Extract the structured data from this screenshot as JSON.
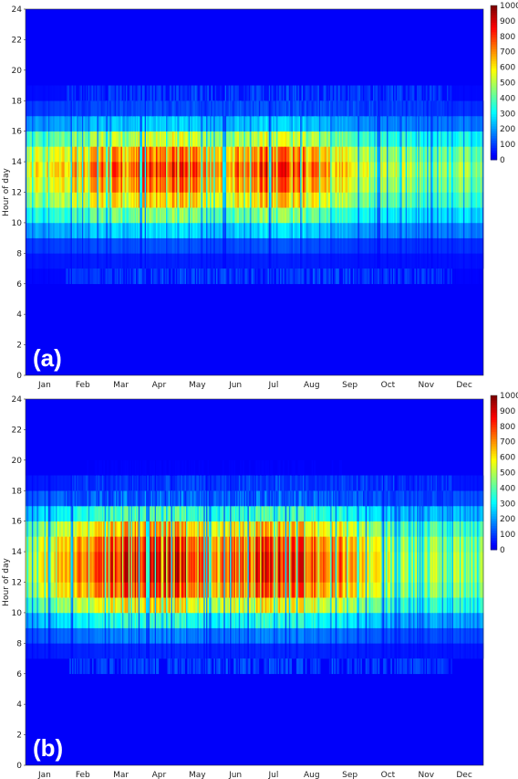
{
  "chart_data": [
    {
      "type": "heatmap",
      "panel_label": "(a)",
      "ylabel": "Hour of day",
      "ylim": [
        0,
        24
      ],
      "yticks": [
        "0",
        "2",
        "4",
        "6",
        "8",
        "10",
        "12",
        "14",
        "16",
        "18",
        "20",
        "22",
        "24"
      ],
      "xticks": [
        "Jan",
        "Feb",
        "Mar",
        "Apr",
        "May",
        "Jun",
        "Jul",
        "Aug",
        "Sep",
        "Oct",
        "Nov",
        "Dec"
      ],
      "colorbar": {
        "range": [
          0,
          1000
        ],
        "ticks": [
          "0",
          "100",
          "200",
          "300",
          "400",
          "500",
          "600",
          "700",
          "800",
          "900",
          "1000"
        ]
      },
      "colormap": "jet",
      "monthly_peak_hourly_max": [
        620,
        680,
        820,
        900,
        920,
        760,
        930,
        900,
        720,
        620,
        560,
        520
      ],
      "hourly_profile_relative": [
        0,
        0,
        0,
        0,
        0,
        0,
        0.02,
        0.05,
        0.12,
        0.32,
        0.55,
        0.78,
        0.92,
        1.0,
        0.9,
        0.65,
        0.3,
        0.12,
        0.03,
        0,
        0,
        0,
        0,
        0
      ]
    },
    {
      "type": "heatmap",
      "panel_label": "(b)",
      "ylabel": "Hour of day",
      "ylim": [
        0,
        24
      ],
      "yticks": [
        "0",
        "2",
        "4",
        "6",
        "8",
        "10",
        "12",
        "14",
        "16",
        "18",
        "20",
        "22",
        "24"
      ],
      "xticks": [
        "Jan",
        "Feb",
        "Mar",
        "Apr",
        "May",
        "Jun",
        "Jul",
        "Aug",
        "Sep",
        "Oct",
        "Nov",
        "Dec"
      ],
      "colorbar": {
        "range": [
          0,
          1000
        ],
        "ticks": [
          "0",
          "100",
          "200",
          "300",
          "400",
          "500",
          "600",
          "700",
          "800",
          "900",
          "1000"
        ]
      },
      "colormap": "jet",
      "monthly_peak_hourly_max": [
        560,
        700,
        900,
        960,
        980,
        780,
        940,
        920,
        860,
        660,
        560,
        540
      ],
      "hourly_profile_relative": [
        0,
        0,
        0,
        0,
        0,
        0,
        0,
        0.06,
        0.18,
        0.4,
        0.7,
        0.92,
        1.0,
        1.0,
        0.95,
        0.78,
        0.45,
        0.2,
        0.06,
        0.01,
        0,
        0,
        0,
        0
      ]
    }
  ]
}
